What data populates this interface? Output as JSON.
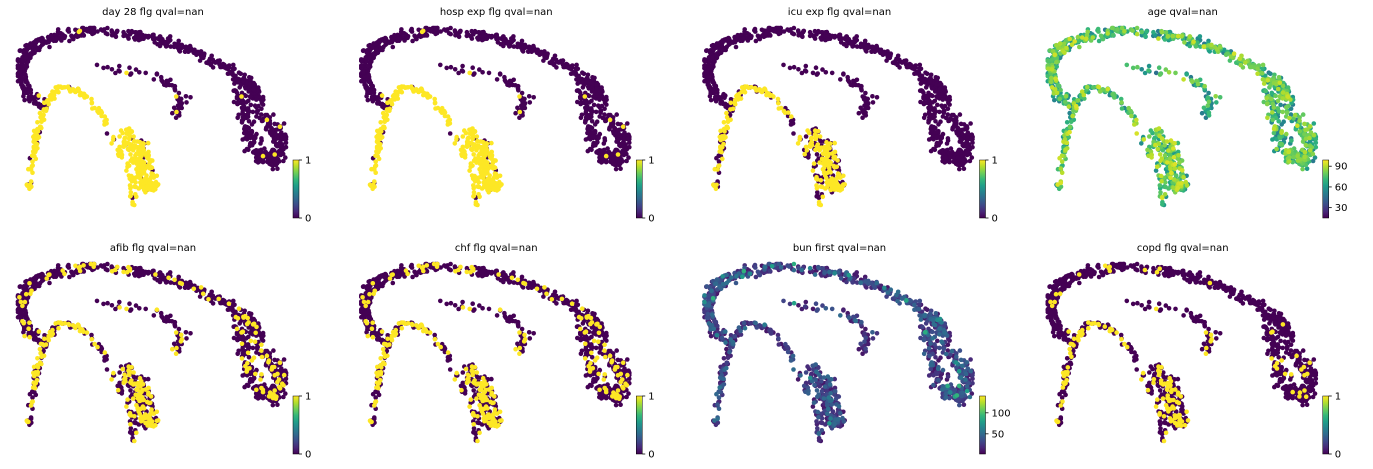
{
  "colormap": "viridis",
  "viridis": [
    "#440154",
    "#482878",
    "#3e4989",
    "#31688e",
    "#26828e",
    "#1f9e89",
    "#35b779",
    "#6ece58",
    "#b5de2b",
    "#fde725"
  ],
  "chart_data": [
    {
      "type": "scatter",
      "title": "day 28 flg qval=nan",
      "xlabel": "",
      "ylabel": "",
      "colorbar": {
        "ticks": [
          0,
          1
        ],
        "tick_labels": [
          "0",
          "1"
        ],
        "range": [
          0,
          1
        ]
      },
      "pattern": "binary_branch",
      "points": []
    },
    {
      "type": "scatter",
      "title": "hosp exp flg qval=nan",
      "xlabel": "",
      "ylabel": "",
      "colorbar": {
        "ticks": [
          0,
          1
        ],
        "tick_labels": [
          "0",
          "1"
        ],
        "range": [
          0,
          1
        ]
      },
      "pattern": "binary_branch",
      "points": []
    },
    {
      "type": "scatter",
      "title": "icu exp flg qval=nan",
      "xlabel": "",
      "ylabel": "",
      "colorbar": {
        "ticks": [
          0,
          1
        ],
        "tick_labels": [
          "0",
          "1"
        ],
        "range": [
          0,
          1
        ]
      },
      "pattern": "binary_branch_sparse",
      "points": []
    },
    {
      "type": "scatter",
      "title": "age qval=nan",
      "xlabel": "",
      "ylabel": "",
      "colorbar": {
        "ticks": [
          30,
          60,
          90
        ],
        "tick_labels": [
          "30",
          "60",
          "90"
        ],
        "range": [
          15,
          99
        ]
      },
      "pattern": "continuous_age",
      "points": []
    },
    {
      "type": "scatter",
      "title": "afib flg qval=nan",
      "xlabel": "",
      "ylabel": "",
      "colorbar": {
        "ticks": [
          0,
          1
        ],
        "tick_labels": [
          "0",
          "1"
        ],
        "range": [
          0,
          1
        ]
      },
      "pattern": "binary_scatter",
      "points": []
    },
    {
      "type": "scatter",
      "title": "chf flg qval=nan",
      "xlabel": "",
      "ylabel": "",
      "colorbar": {
        "ticks": [
          0,
          1
        ],
        "tick_labels": [
          "0",
          "1"
        ],
        "range": [
          0,
          1
        ]
      },
      "pattern": "binary_scatter",
      "points": []
    },
    {
      "type": "scatter",
      "title": "bun first qval=nan",
      "xlabel": "",
      "ylabel": "",
      "colorbar": {
        "ticks": [
          50,
          100
        ],
        "tick_labels": [
          "50",
          "100"
        ],
        "range": [
          2,
          140
        ]
      },
      "pattern": "continuous_bun",
      "points": []
    },
    {
      "type": "scatter",
      "title": "copd flg qval=nan",
      "xlabel": "",
      "ylabel": "",
      "colorbar": {
        "ticks": [
          0,
          1
        ],
        "tick_labels": [
          "0",
          "1"
        ],
        "range": [
          0,
          1
        ]
      },
      "pattern": "binary_scatter_sparse",
      "points": []
    }
  ]
}
